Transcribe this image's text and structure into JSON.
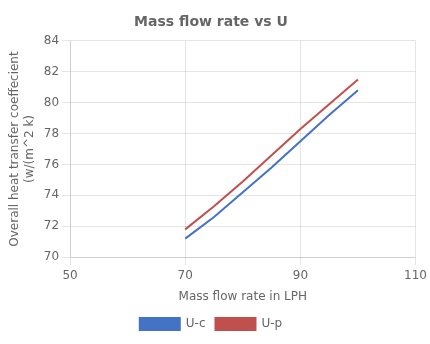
{
  "chart_data": {
    "type": "line",
    "title": "Mass flow rate vs U",
    "xlabel": "Mass flow rate in LPH",
    "ylabel": [
      "Overall heat transfer coeffecient",
      "(w/(m^2 k)"
    ],
    "x": [
      70,
      75,
      80,
      85,
      90,
      95,
      100
    ],
    "series": [
      {
        "name": "U-c",
        "color": "#4472C4",
        "values": [
          71.2,
          72.6,
          74.2,
          75.8,
          77.5,
          79.2,
          80.8
        ]
      },
      {
        "name": "U-p",
        "color": "#C0504D",
        "values": [
          71.8,
          73.3,
          74.9,
          76.6,
          78.3,
          79.9,
          81.5
        ]
      }
    ],
    "xlim": [
      50,
      110
    ],
    "ylim": [
      70,
      84
    ],
    "xticks": [
      50,
      70,
      90,
      110
    ],
    "yticks": [
      70,
      72,
      74,
      76,
      78,
      80,
      82,
      84
    ],
    "grid": true,
    "legend": "bottom"
  }
}
